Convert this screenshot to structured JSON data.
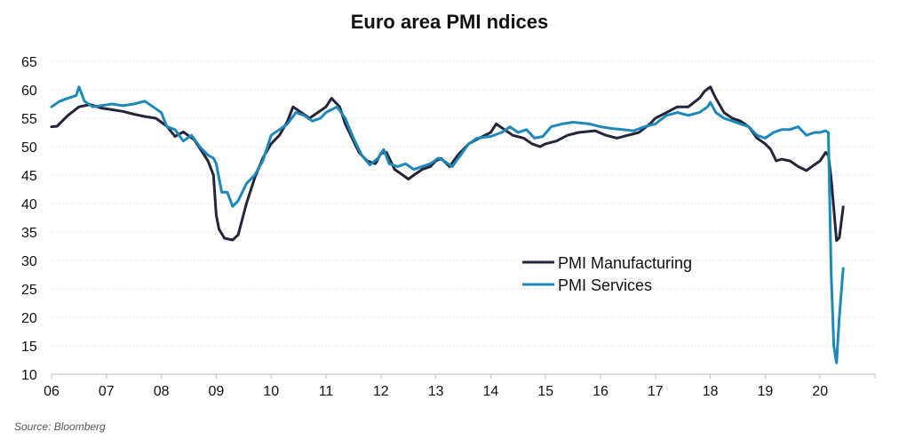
{
  "chart_data": {
    "type": "line",
    "title": "Euro area PMI ndices",
    "source": "Source: Bloomberg",
    "xlabel": "",
    "ylabel": "",
    "x_ticks": [
      "06",
      "07",
      "08",
      "09",
      "10",
      "11",
      "12",
      "13",
      "14",
      "15",
      "16",
      "17",
      "18",
      "19",
      "20"
    ],
    "y_ticks": [
      10,
      15,
      20,
      25,
      30,
      35,
      40,
      45,
      50,
      55,
      60,
      65
    ],
    "xlim": [
      2006.0,
      2021.0
    ],
    "ylim": [
      10,
      65
    ],
    "grid": "horizontal",
    "legend_position": "center-right",
    "series": [
      {
        "name": "PMI Manufacturing",
        "color": "#23263a",
        "points": [
          [
            2006.0,
            53.5
          ],
          [
            2006.1,
            53.6
          ],
          [
            2006.3,
            55.5
          ],
          [
            2006.5,
            57.0
          ],
          [
            2006.7,
            57.4
          ],
          [
            2006.9,
            56.8
          ],
          [
            2007.1,
            56.5
          ],
          [
            2007.3,
            56.2
          ],
          [
            2007.5,
            55.7
          ],
          [
            2007.7,
            55.3
          ],
          [
            2007.9,
            55.0
          ],
          [
            2008.1,
            53.6
          ],
          [
            2008.25,
            51.8
          ],
          [
            2008.4,
            52.6
          ],
          [
            2008.6,
            51.2
          ],
          [
            2008.75,
            49.0
          ],
          [
            2008.85,
            47.5
          ],
          [
            2008.95,
            45.0
          ],
          [
            2009.0,
            38.0
          ],
          [
            2009.05,
            35.5
          ],
          [
            2009.15,
            33.9
          ],
          [
            2009.3,
            33.6
          ],
          [
            2009.4,
            34.5
          ],
          [
            2009.55,
            40.0
          ],
          [
            2009.7,
            44.5
          ],
          [
            2009.85,
            48.0
          ],
          [
            2010.0,
            50.5
          ],
          [
            2010.15,
            52.0
          ],
          [
            2010.3,
            54.5
          ],
          [
            2010.4,
            57.0
          ],
          [
            2010.55,
            56.0
          ],
          [
            2010.7,
            55.0
          ],
          [
            2010.85,
            56.0
          ],
          [
            2011.0,
            57.0
          ],
          [
            2011.1,
            58.5
          ],
          [
            2011.25,
            57.0
          ],
          [
            2011.35,
            54.0
          ],
          [
            2011.5,
            51.0
          ],
          [
            2011.6,
            49.0
          ],
          [
            2011.75,
            47.5
          ],
          [
            2011.9,
            47.0
          ],
          [
            2012.0,
            48.8
          ],
          [
            2012.1,
            49.0
          ],
          [
            2012.25,
            46.0
          ],
          [
            2012.4,
            45.0
          ],
          [
            2012.5,
            44.3
          ],
          [
            2012.6,
            45.0
          ],
          [
            2012.75,
            46.0
          ],
          [
            2012.9,
            46.5
          ],
          [
            2013.0,
            47.5
          ],
          [
            2013.1,
            47.9
          ],
          [
            2013.25,
            46.5
          ],
          [
            2013.4,
            48.5
          ],
          [
            2013.6,
            50.5
          ],
          [
            2013.75,
            51.3
          ],
          [
            2014.0,
            52.5
          ],
          [
            2014.1,
            54.0
          ],
          [
            2014.25,
            53.0
          ],
          [
            2014.4,
            52.0
          ],
          [
            2014.6,
            51.5
          ],
          [
            2014.75,
            50.5
          ],
          [
            2014.9,
            50.0
          ],
          [
            2015.0,
            50.5
          ],
          [
            2015.2,
            51.0
          ],
          [
            2015.4,
            52.0
          ],
          [
            2015.6,
            52.5
          ],
          [
            2015.9,
            52.8
          ],
          [
            2016.1,
            52.0
          ],
          [
            2016.3,
            51.5
          ],
          [
            2016.5,
            52.0
          ],
          [
            2016.7,
            52.5
          ],
          [
            2016.9,
            54.0
          ],
          [
            2017.0,
            55.0
          ],
          [
            2017.2,
            56.0
          ],
          [
            2017.4,
            57.0
          ],
          [
            2017.6,
            57.0
          ],
          [
            2017.8,
            58.5
          ],
          [
            2017.9,
            59.8
          ],
          [
            2018.0,
            60.5
          ],
          [
            2018.1,
            58.5
          ],
          [
            2018.25,
            56.0
          ],
          [
            2018.4,
            55.0
          ],
          [
            2018.55,
            54.5
          ],
          [
            2018.7,
            53.5
          ],
          [
            2018.85,
            51.5
          ],
          [
            2019.0,
            50.5
          ],
          [
            2019.1,
            49.5
          ],
          [
            2019.2,
            47.5
          ],
          [
            2019.3,
            47.8
          ],
          [
            2019.45,
            47.5
          ],
          [
            2019.6,
            46.5
          ],
          [
            2019.75,
            45.8
          ],
          [
            2019.85,
            46.5
          ],
          [
            2020.0,
            47.5
          ],
          [
            2020.1,
            49.0
          ],
          [
            2020.15,
            48.5
          ],
          [
            2020.2,
            44.5
          ],
          [
            2020.3,
            33.5
          ],
          [
            2020.35,
            34.0
          ],
          [
            2020.42,
            39.4
          ]
        ]
      },
      {
        "name": "PMI Services",
        "color": "#1e88b8",
        "points": [
          [
            2006.0,
            57.0
          ],
          [
            2006.15,
            58.0
          ],
          [
            2006.3,
            58.5
          ],
          [
            2006.45,
            59.0
          ],
          [
            2006.5,
            60.5
          ],
          [
            2006.6,
            58.0
          ],
          [
            2006.75,
            57.0
          ],
          [
            2006.9,
            57.2
          ],
          [
            2007.1,
            57.5
          ],
          [
            2007.3,
            57.2
          ],
          [
            2007.5,
            57.5
          ],
          [
            2007.7,
            58.0
          ],
          [
            2007.85,
            57.0
          ],
          [
            2008.0,
            56.0
          ],
          [
            2008.1,
            53.5
          ],
          [
            2008.25,
            53.0
          ],
          [
            2008.4,
            51.0
          ],
          [
            2008.55,
            52.0
          ],
          [
            2008.7,
            50.0
          ],
          [
            2008.85,
            48.5
          ],
          [
            2008.95,
            48.0
          ],
          [
            2009.0,
            47.0
          ],
          [
            2009.1,
            42.0
          ],
          [
            2009.2,
            42.0
          ],
          [
            2009.3,
            39.5
          ],
          [
            2009.4,
            40.5
          ],
          [
            2009.55,
            43.5
          ],
          [
            2009.7,
            45.0
          ],
          [
            2009.85,
            47.5
          ],
          [
            2010.0,
            52.0
          ],
          [
            2010.15,
            53.0
          ],
          [
            2010.3,
            54.0
          ],
          [
            2010.45,
            56.0
          ],
          [
            2010.6,
            55.5
          ],
          [
            2010.75,
            54.5
          ],
          [
            2010.9,
            55.0
          ],
          [
            2011.0,
            56.0
          ],
          [
            2011.2,
            57.0
          ],
          [
            2011.35,
            55.0
          ],
          [
            2011.5,
            51.5
          ],
          [
            2011.65,
            48.5
          ],
          [
            2011.8,
            46.8
          ],
          [
            2011.95,
            48.0
          ],
          [
            2012.05,
            49.5
          ],
          [
            2012.15,
            47.0
          ],
          [
            2012.3,
            46.5
          ],
          [
            2012.45,
            47.0
          ],
          [
            2012.6,
            46.0
          ],
          [
            2012.75,
            46.5
          ],
          [
            2012.9,
            47.0
          ],
          [
            2013.05,
            48.0
          ],
          [
            2013.15,
            47.5
          ],
          [
            2013.3,
            46.5
          ],
          [
            2013.45,
            48.5
          ],
          [
            2013.6,
            50.5
          ],
          [
            2013.75,
            51.5
          ],
          [
            2014.0,
            51.8
          ],
          [
            2014.2,
            52.5
          ],
          [
            2014.35,
            53.5
          ],
          [
            2014.5,
            52.5
          ],
          [
            2014.65,
            53.0
          ],
          [
            2014.8,
            51.5
          ],
          [
            2014.95,
            51.8
          ],
          [
            2015.1,
            53.5
          ],
          [
            2015.3,
            54.0
          ],
          [
            2015.5,
            54.3
          ],
          [
            2015.8,
            54.0
          ],
          [
            2016.0,
            53.5
          ],
          [
            2016.2,
            53.2
          ],
          [
            2016.4,
            53.0
          ],
          [
            2016.6,
            52.8
          ],
          [
            2016.8,
            53.5
          ],
          [
            2017.0,
            54.0
          ],
          [
            2017.2,
            55.5
          ],
          [
            2017.4,
            56.0
          ],
          [
            2017.6,
            55.5
          ],
          [
            2017.8,
            56.0
          ],
          [
            2017.95,
            57.0
          ],
          [
            2018.0,
            57.8
          ],
          [
            2018.1,
            56.0
          ],
          [
            2018.25,
            55.0
          ],
          [
            2018.4,
            54.5
          ],
          [
            2018.55,
            54.0
          ],
          [
            2018.7,
            53.5
          ],
          [
            2018.85,
            52.0
          ],
          [
            2019.0,
            51.5
          ],
          [
            2019.15,
            52.5
          ],
          [
            2019.3,
            53.0
          ],
          [
            2019.45,
            53.0
          ],
          [
            2019.6,
            53.5
          ],
          [
            2019.75,
            52.0
          ],
          [
            2019.9,
            52.5
          ],
          [
            2020.0,
            52.5
          ],
          [
            2020.1,
            52.8
          ],
          [
            2020.15,
            52.5
          ],
          [
            2020.2,
            28.0
          ],
          [
            2020.25,
            15.0
          ],
          [
            2020.3,
            12.0
          ],
          [
            2020.35,
            20.0
          ],
          [
            2020.42,
            28.6
          ]
        ]
      }
    ]
  }
}
